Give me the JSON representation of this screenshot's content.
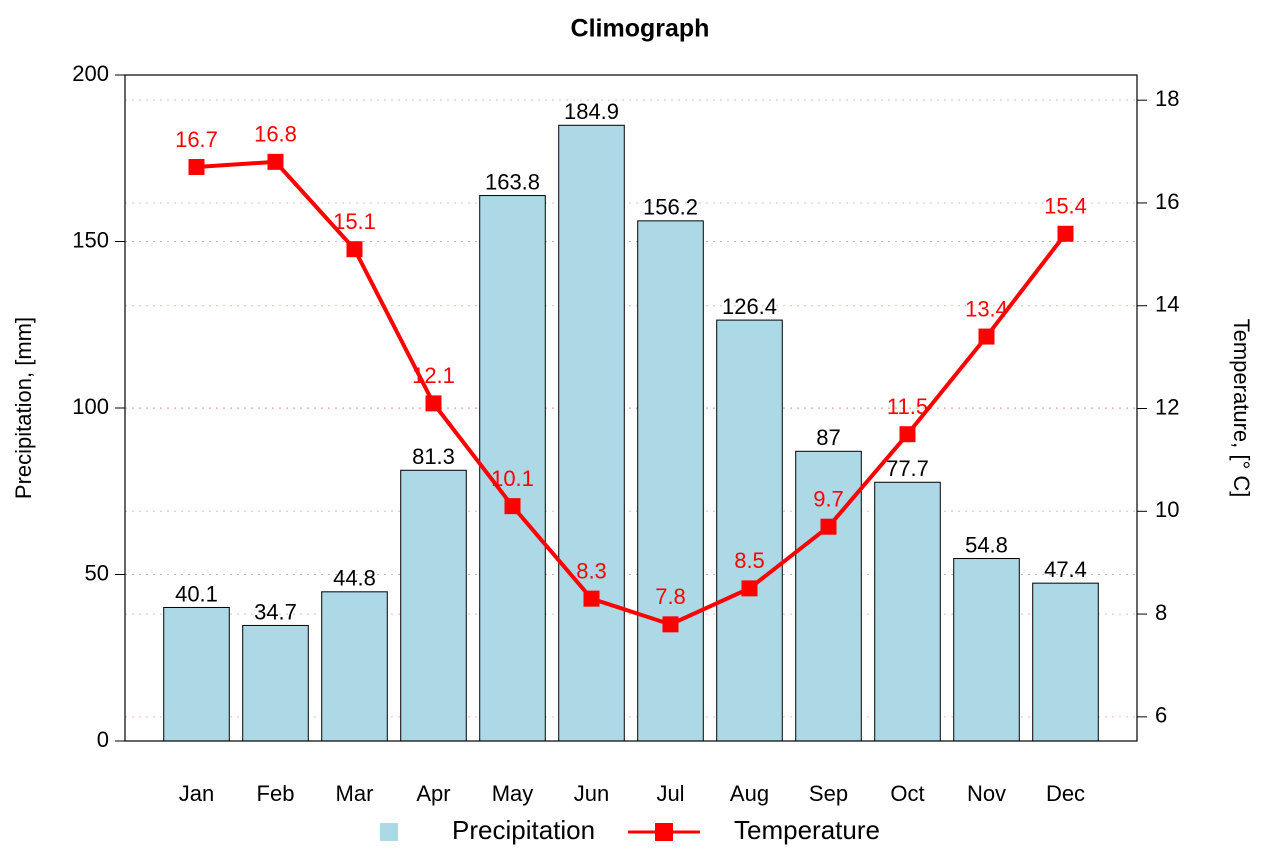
{
  "chart_data": {
    "type": "bar",
    "title": "Climograph",
    "categories": [
      "Jan",
      "Feb",
      "Mar",
      "Apr",
      "May",
      "Jun",
      "Jul",
      "Aug",
      "Sep",
      "Oct",
      "Nov",
      "Dec"
    ],
    "series": [
      {
        "name": "Precipitation",
        "type": "bar",
        "color": "#add8e6",
        "values": [
          40.1,
          34.7,
          44.8,
          81.3,
          163.8,
          184.9,
          156.2,
          126.4,
          87,
          77.7,
          54.8,
          47.4
        ]
      },
      {
        "name": "Temperature",
        "type": "line",
        "axis": "y2",
        "color": "#ff0000",
        "values": [
          16.7,
          16.8,
          15.1,
          12.1,
          10.1,
          8.3,
          7.8,
          8.5,
          9.7,
          11.5,
          13.4,
          15.4
        ]
      }
    ],
    "y_label": "Precipitation, [mm]",
    "y2_label": "Temperature, [° C]",
    "ylim": [
      0,
      200
    ],
    "yticks": [
      0,
      50,
      100,
      150,
      200
    ],
    "y2lim": [
      5.53,
      18.49
    ],
    "y2ticks": [
      6,
      8,
      10,
      12,
      14,
      16,
      18
    ],
    "grid": true,
    "legend": "bottom"
  }
}
